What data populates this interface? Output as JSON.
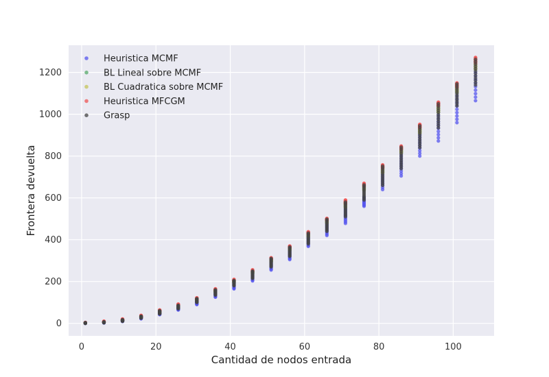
{
  "chart_data": {
    "type": "scatter",
    "xlabel": "Cantidad de nodos entrada",
    "ylabel": "Frontera devuelta",
    "xlim": [
      -3.5,
      111
    ],
    "ylim": [
      -60,
      1330
    ],
    "x_ticks": [
      0,
      20,
      40,
      60,
      80,
      100
    ],
    "y_ticks": [
      0,
      200,
      400,
      600,
      800,
      1000,
      1200
    ],
    "grid": true,
    "legend_position": "upper-left",
    "background": "#eaeaf2",
    "x": [
      1,
      6,
      11,
      16,
      21,
      26,
      31,
      36,
      41,
      46,
      51,
      56,
      61,
      66,
      71,
      76,
      81,
      86,
      91,
      96,
      101,
      106
    ],
    "series": [
      {
        "name": "Heuristica MCMF",
        "color": "#5555ee",
        "ranges": [
          [
            0,
            2
          ],
          [
            2,
            6
          ],
          [
            9,
            15
          ],
          [
            22,
            30
          ],
          [
            42,
            52
          ],
          [
            64,
            74
          ],
          [
            90,
            105
          ],
          [
            125,
            152
          ],
          [
            165,
            195
          ],
          [
            203,
            242
          ],
          [
            255,
            298
          ],
          [
            305,
            350
          ],
          [
            368,
            420
          ],
          [
            420,
            488
          ],
          [
            478,
            555
          ],
          [
            560,
            605
          ],
          [
            640,
            750
          ],
          [
            705,
            835
          ],
          [
            800,
            940
          ],
          [
            872,
            1040
          ],
          [
            960,
            1135
          ],
          [
            1065,
            1250
          ]
        ]
      },
      {
        "name": "BL Lineal sobre MCMF",
        "color": "#55a868",
        "ranges": [
          [
            1,
            3
          ],
          [
            4,
            7
          ],
          [
            13,
            18
          ],
          [
            28,
            35
          ],
          [
            52,
            60
          ],
          [
            80,
            88
          ],
          [
            112,
            120
          ],
          [
            150,
            160
          ],
          [
            195,
            205
          ],
          [
            238,
            250
          ],
          [
            295,
            308
          ],
          [
            350,
            365
          ],
          [
            415,
            432
          ],
          [
            480,
            498
          ],
          [
            555,
            580
          ],
          [
            638,
            662
          ],
          [
            720,
            752
          ],
          [
            815,
            842
          ],
          [
            910,
            945
          ],
          [
            1010,
            1050
          ],
          [
            1105,
            1145
          ],
          [
            1215,
            1262
          ]
        ]
      },
      {
        "name": "BL Cuadratica sobre MCMF",
        "color": "#c4c45a",
        "ranges": [
          [
            1,
            3
          ],
          [
            4,
            7
          ],
          [
            13,
            18
          ],
          [
            28,
            35
          ],
          [
            52,
            60
          ],
          [
            80,
            88
          ],
          [
            112,
            120
          ],
          [
            150,
            160
          ],
          [
            195,
            205
          ],
          [
            238,
            250
          ],
          [
            295,
            308
          ],
          [
            350,
            365
          ],
          [
            415,
            432
          ],
          [
            480,
            498
          ],
          [
            555,
            580
          ],
          [
            638,
            662
          ],
          [
            720,
            752
          ],
          [
            815,
            842
          ],
          [
            910,
            945
          ],
          [
            1010,
            1050
          ],
          [
            1105,
            1145
          ],
          [
            1215,
            1262
          ]
        ]
      },
      {
        "name": "Heuristica MFCGM",
        "color": "#ee5555",
        "ranges": [
          [
            2,
            4
          ],
          [
            7,
            10
          ],
          [
            16,
            21
          ],
          [
            32,
            38
          ],
          [
            58,
            64
          ],
          [
            86,
            92
          ],
          [
            116,
            122
          ],
          [
            158,
            165
          ],
          [
            202,
            210
          ],
          [
            248,
            256
          ],
          [
            305,
            314
          ],
          [
            360,
            370
          ],
          [
            428,
            438
          ],
          [
            492,
            502
          ],
          [
            572,
            590
          ],
          [
            655,
            670
          ],
          [
            742,
            758
          ],
          [
            832,
            848
          ],
          [
            935,
            952
          ],
          [
            1040,
            1058
          ],
          [
            1130,
            1150
          ],
          [
            1245,
            1272
          ]
        ]
      },
      {
        "name": "Grasp",
        "color": "#444444",
        "ranges": [
          [
            0,
            3
          ],
          [
            3,
            7
          ],
          [
            10,
            17
          ],
          [
            25,
            34
          ],
          [
            45,
            60
          ],
          [
            70,
            86
          ],
          [
            100,
            118
          ],
          [
            135,
            160
          ],
          [
            180,
            205
          ],
          [
            215,
            250
          ],
          [
            270,
            310
          ],
          [
            320,
            365
          ],
          [
            380,
            432
          ],
          [
            440,
            498
          ],
          [
            510,
            580
          ],
          [
            590,
            662
          ],
          [
            660,
            752
          ],
          [
            740,
            842
          ],
          [
            840,
            945
          ],
          [
            935,
            1050
          ],
          [
            1040,
            1145
          ],
          [
            1140,
            1262
          ]
        ]
      }
    ]
  }
}
